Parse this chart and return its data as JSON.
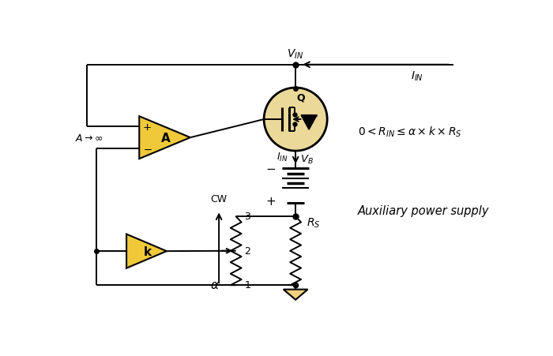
{
  "bg_color": "#ffffff",
  "gold_fill": "#F0C93A",
  "gold_edge": "#C8A020",
  "line_color": "#000000",
  "fig_width": 7.0,
  "fig_height": 4.52,
  "dpi": 100,
  "xlim": [
    0,
    7.0
  ],
  "ylim": [
    0,
    4.52
  ]
}
